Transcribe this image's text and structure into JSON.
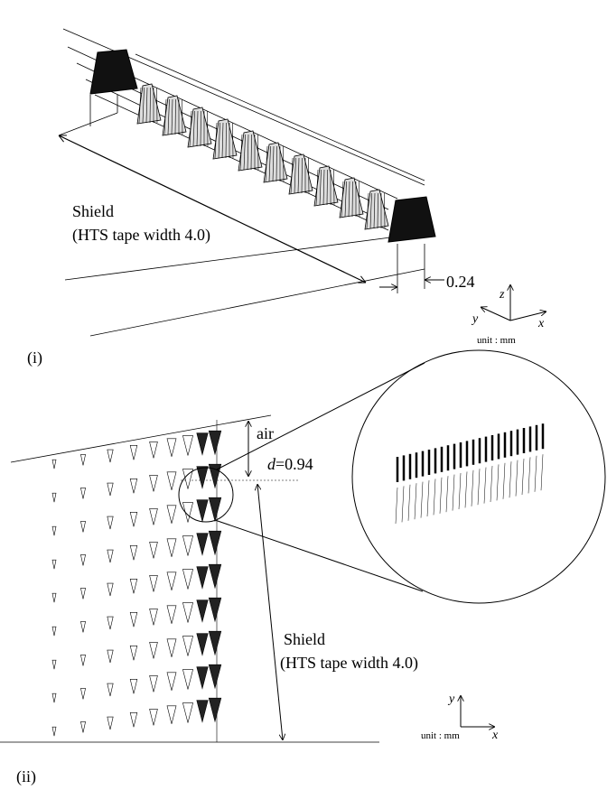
{
  "panel_i": {
    "label": "(i)",
    "shield": "Shield",
    "tape_width": "(HTS tape width 4.0)",
    "gap": "0.24",
    "axes": {
      "z": "z",
      "y": "y",
      "x": "x"
    },
    "unit": "unit : mm"
  },
  "panel_ii": {
    "label": "(ii)",
    "air": "air",
    "thickness_symbol": "d",
    "thickness": "=0.94",
    "shield": "Shield",
    "tape_width": "(HTS tape width 4.0)",
    "axes": {
      "y": "y",
      "x": "x"
    },
    "unit": "unit : mm"
  }
}
